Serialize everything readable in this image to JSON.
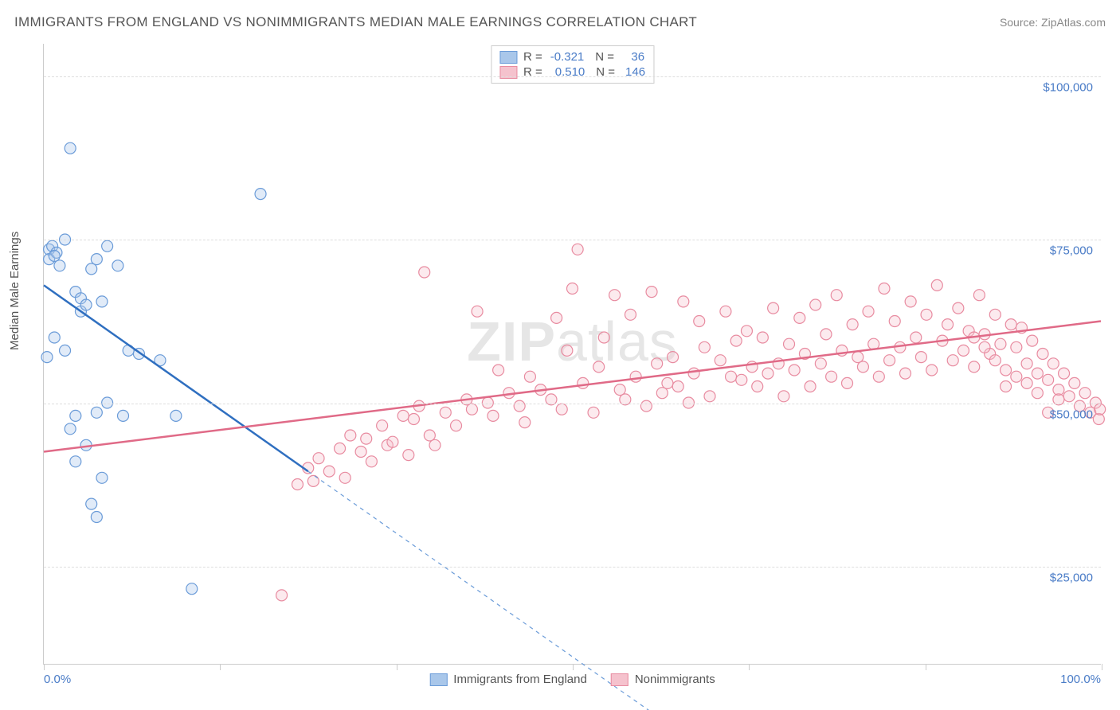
{
  "title": "IMMIGRANTS FROM ENGLAND VS NONIMMIGRANTS MEDIAN MALE EARNINGS CORRELATION CHART",
  "source": "Source: ZipAtlas.com",
  "ylabel": "Median Male Earnings",
  "watermark_bold": "ZIP",
  "watermark_rest": "atlas",
  "chart": {
    "type": "scatter",
    "xlim": [
      0,
      100
    ],
    "ylim": [
      10000,
      105000
    ],
    "yticks": [
      {
        "v": 25000,
        "label": "$25,000"
      },
      {
        "v": 50000,
        "label": "$50,000"
      },
      {
        "v": 75000,
        "label": "$75,000"
      },
      {
        "v": 100000,
        "label": "$100,000"
      }
    ],
    "xtick_positions": [
      0,
      16.67,
      33.33,
      50,
      66.67,
      83.33,
      100
    ],
    "xaxis_left_label": "0.0%",
    "xaxis_right_label": "100.0%",
    "background_color": "#ffffff",
    "grid_color": "#dddddd",
    "marker_radius": 7,
    "marker_fill_opacity": 0.35,
    "series": [
      {
        "name": "Immigrants from England",
        "color_fill": "#a9c7ea",
        "color_stroke": "#6a9bd8",
        "line_color": "#2f6fc0",
        "r_value": "-0.321",
        "n_value": "36",
        "trend": {
          "x1": 0,
          "y1": 68000,
          "x2": 25,
          "y2": 39500,
          "dash_x2": 58,
          "dash_y2": 2000
        },
        "points": [
          [
            0.5,
            73500
          ],
          [
            0.8,
            74000
          ],
          [
            0.5,
            72000
          ],
          [
            1.2,
            73000
          ],
          [
            1.0,
            72500
          ],
          [
            1.5,
            71000
          ],
          [
            2.0,
            75000
          ],
          [
            2.5,
            89000
          ],
          [
            3.0,
            67000
          ],
          [
            3.5,
            64000
          ],
          [
            1.0,
            60000
          ],
          [
            2.0,
            58000
          ],
          [
            3.5,
            66000
          ],
          [
            4.0,
            65000
          ],
          [
            4.5,
            70500
          ],
          [
            5.0,
            72000
          ],
          [
            6.0,
            74000
          ],
          [
            5.5,
            65500
          ],
          [
            7.0,
            71000
          ],
          [
            8.0,
            58000
          ],
          [
            9.0,
            57500
          ],
          [
            3.0,
            48000
          ],
          [
            4.0,
            43500
          ],
          [
            2.5,
            46000
          ],
          [
            5.0,
            48500
          ],
          [
            6.0,
            50000
          ],
          [
            7.5,
            48000
          ],
          [
            5.5,
            38500
          ],
          [
            3.0,
            41000
          ],
          [
            4.5,
            34500
          ],
          [
            5.0,
            32500
          ],
          [
            11.0,
            56500
          ],
          [
            12.5,
            48000
          ],
          [
            14.0,
            21500
          ],
          [
            20.5,
            82000
          ],
          [
            0.3,
            57000
          ]
        ]
      },
      {
        "name": "Nonimmigrants",
        "color_fill": "#f5c2cd",
        "color_stroke": "#e88ba0",
        "line_color": "#e06a87",
        "r_value": "0.510",
        "n_value": "146",
        "trend": {
          "x1": 0,
          "y1": 42500,
          "x2": 100,
          "y2": 62500
        },
        "points": [
          [
            22.5,
            20500
          ],
          [
            24,
            37500
          ],
          [
            25,
            40000
          ],
          [
            25.5,
            38000
          ],
          [
            26,
            41500
          ],
          [
            27,
            39500
          ],
          [
            28,
            43000
          ],
          [
            28.5,
            38500
          ],
          [
            29,
            45000
          ],
          [
            30,
            42500
          ],
          [
            30.5,
            44500
          ],
          [
            31,
            41000
          ],
          [
            32,
            46500
          ],
          [
            32.5,
            43500
          ],
          [
            33,
            44000
          ],
          [
            34,
            48000
          ],
          [
            34.5,
            42000
          ],
          [
            35,
            47500
          ],
          [
            35.5,
            49500
          ],
          [
            36,
            70000
          ],
          [
            36.5,
            45000
          ],
          [
            37,
            43500
          ],
          [
            38,
            48500
          ],
          [
            39,
            46500
          ],
          [
            40,
            50500
          ],
          [
            40.5,
            49000
          ],
          [
            41,
            64000
          ],
          [
            42,
            50000
          ],
          [
            42.5,
            48000
          ],
          [
            43,
            55000
          ],
          [
            44,
            51500
          ],
          [
            45,
            49500
          ],
          [
            45.5,
            47000
          ],
          [
            46,
            54000
          ],
          [
            47,
            52000
          ],
          [
            48,
            50500
          ],
          [
            48.5,
            63000
          ],
          [
            49,
            49000
          ],
          [
            49.5,
            58000
          ],
          [
            50,
            67500
          ],
          [
            50.5,
            73500
          ],
          [
            51,
            53000
          ],
          [
            52,
            48500
          ],
          [
            52.5,
            55500
          ],
          [
            53,
            60000
          ],
          [
            54,
            66500
          ],
          [
            54.5,
            52000
          ],
          [
            55,
            50500
          ],
          [
            55.5,
            63500
          ],
          [
            56,
            54000
          ],
          [
            57,
            49500
          ],
          [
            57.5,
            67000
          ],
          [
            58,
            56000
          ],
          [
            58.5,
            51500
          ],
          [
            59,
            53000
          ],
          [
            59.5,
            57000
          ],
          [
            60,
            52500
          ],
          [
            60.5,
            65500
          ],
          [
            61,
            50000
          ],
          [
            61.5,
            54500
          ],
          [
            62,
            62500
          ],
          [
            62.5,
            58500
          ],
          [
            63,
            51000
          ],
          [
            64,
            56500
          ],
          [
            64.5,
            64000
          ],
          [
            65,
            54000
          ],
          [
            65.5,
            59500
          ],
          [
            66,
            53500
          ],
          [
            66.5,
            61000
          ],
          [
            67,
            55500
          ],
          [
            67.5,
            52500
          ],
          [
            68,
            60000
          ],
          [
            68.5,
            54500
          ],
          [
            69,
            64500
          ],
          [
            69.5,
            56000
          ],
          [
            70,
            51000
          ],
          [
            70.5,
            59000
          ],
          [
            71,
            55000
          ],
          [
            71.5,
            63000
          ],
          [
            72,
            57500
          ],
          [
            72.5,
            52500
          ],
          [
            73,
            65000
          ],
          [
            73.5,
            56000
          ],
          [
            74,
            60500
          ],
          [
            74.5,
            54000
          ],
          [
            75,
            66500
          ],
          [
            75.5,
            58000
          ],
          [
            76,
            53000
          ],
          [
            76.5,
            62000
          ],
          [
            77,
            57000
          ],
          [
            77.5,
            55500
          ],
          [
            78,
            64000
          ],
          [
            78.5,
            59000
          ],
          [
            79,
            54000
          ],
          [
            79.5,
            67500
          ],
          [
            80,
            56500
          ],
          [
            80.5,
            62500
          ],
          [
            81,
            58500
          ],
          [
            81.5,
            54500
          ],
          [
            82,
            65500
          ],
          [
            82.5,
            60000
          ],
          [
            83,
            57000
          ],
          [
            83.5,
            63500
          ],
          [
            84,
            55000
          ],
          [
            84.5,
            68000
          ],
          [
            85,
            59500
          ],
          [
            85.5,
            62000
          ],
          [
            86,
            56500
          ],
          [
            86.5,
            64500
          ],
          [
            87,
            58000
          ],
          [
            87.5,
            61000
          ],
          [
            88,
            55500
          ],
          [
            88.5,
            66500
          ],
          [
            89,
            60500
          ],
          [
            89.5,
            57500
          ],
          [
            90,
            63500
          ],
          [
            90.5,
            59000
          ],
          [
            91,
            55000
          ],
          [
            91.5,
            62000
          ],
          [
            92,
            58500
          ],
          [
            92.5,
            61500
          ],
          [
            93,
            56000
          ],
          [
            93.5,
            59500
          ],
          [
            94,
            54500
          ],
          [
            94.5,
            57500
          ],
          [
            95,
            53500
          ],
          [
            95.5,
            56000
          ],
          [
            96,
            52000
          ],
          [
            96.5,
            54500
          ],
          [
            97,
            51000
          ],
          [
            97.5,
            53000
          ],
          [
            98,
            49500
          ],
          [
            98.5,
            51500
          ],
          [
            99,
            48500
          ],
          [
            99.5,
            50000
          ],
          [
            99.8,
            47500
          ],
          [
            99.9,
            49000
          ],
          [
            95,
            48500
          ],
          [
            96,
            50500
          ],
          [
            94,
            51500
          ],
          [
            93,
            53000
          ],
          [
            92,
            54000
          ],
          [
            91,
            52500
          ],
          [
            90,
            56500
          ],
          [
            89,
            58500
          ],
          [
            88,
            60000
          ]
        ]
      }
    ]
  },
  "colors": {
    "title_text": "#555555",
    "axis_text": "#555555",
    "tick_label": "#4a7cc7",
    "source_text": "#888888"
  }
}
